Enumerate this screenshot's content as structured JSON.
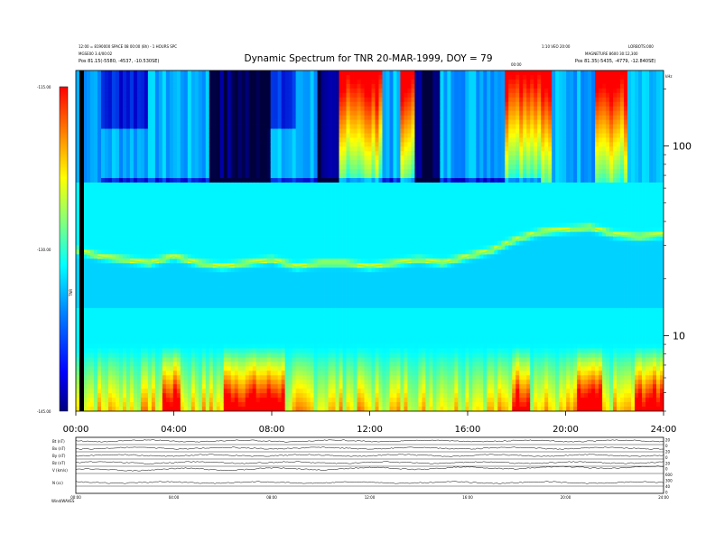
{
  "chart_data": {
    "type": "heatmap",
    "title": "Dynamic Spectrum for TNR 20-MAR-1999, DOY = 79",
    "header_left": [
      "12:00 = 8190000 SPACE 08 00:00 (8h) - 1 HOURS SPC",
      "MGSE00 3.4/00:02",
      "Pos   81.15(-5580, -4537, -10.530SE)"
    ],
    "header_right": [
      "1:10 VEO 20:00",
      "LORBOTS:000",
      "MAGNETURE 8600 30:12,300",
      "Pos   81.35(-5435, -4779, -12.840SE)"
    ],
    "header_center_mark": "00:00",
    "x_ticks": [
      "00:00",
      "04:00",
      "08:00",
      "12:00",
      "16:00",
      "20:00",
      "24:00"
    ],
    "x_range_hours": [
      0,
      24
    ],
    "y_label": "kHz",
    "y_scale": "log",
    "y_range_khz": [
      4,
      250
    ],
    "y_ticks": [
      "100",
      "10"
    ],
    "colorbar_ticks": [
      "-115.00",
      "-130.00",
      "-145.00"
    ],
    "colorbar_label": "TNR",
    "colorbar_range": [
      -145,
      -115
    ],
    "colors": [
      "#000050",
      "#0000c0",
      "#0060ff",
      "#00c8ff",
      "#00ffff",
      "#80ff80",
      "#ffff00",
      "#ff8000",
      "#ff0000"
    ],
    "plasma_line_khz": [
      [
        0,
        28
      ],
      [
        1,
        26
      ],
      [
        2,
        25
      ],
      [
        3,
        24
      ],
      [
        4,
        26
      ],
      [
        5,
        24
      ],
      [
        6,
        23
      ],
      [
        7,
        24
      ],
      [
        8,
        25
      ],
      [
        9,
        23
      ],
      [
        10,
        24
      ],
      [
        11,
        24
      ],
      [
        12,
        23
      ],
      [
        13,
        24
      ],
      [
        14,
        25
      ],
      [
        15,
        24
      ],
      [
        16,
        26
      ],
      [
        17,
        28
      ],
      [
        18,
        32
      ],
      [
        19,
        35
      ],
      [
        20,
        36
      ],
      [
        21,
        37
      ],
      [
        22,
        34
      ],
      [
        23,
        33
      ],
      [
        24,
        34
      ]
    ],
    "upper_band_boundary_khz": 65
  },
  "bottom_panel": {
    "row_labels": [
      "Bt (nT)",
      "Bx (nT)",
      "By (nT)",
      "Bz (nT)",
      "V (km/s)",
      "N (cc)"
    ],
    "right_ticks": [
      "20",
      "0",
      "20",
      "0",
      "20",
      "0",
      "600",
      "300",
      "40",
      "0"
    ],
    "x_ticks": [
      "00:00",
      "04:00",
      "08:00",
      "12:00",
      "16:00",
      "20:00",
      "24:00"
    ],
    "footer_text": "Wind/WAVES"
  }
}
